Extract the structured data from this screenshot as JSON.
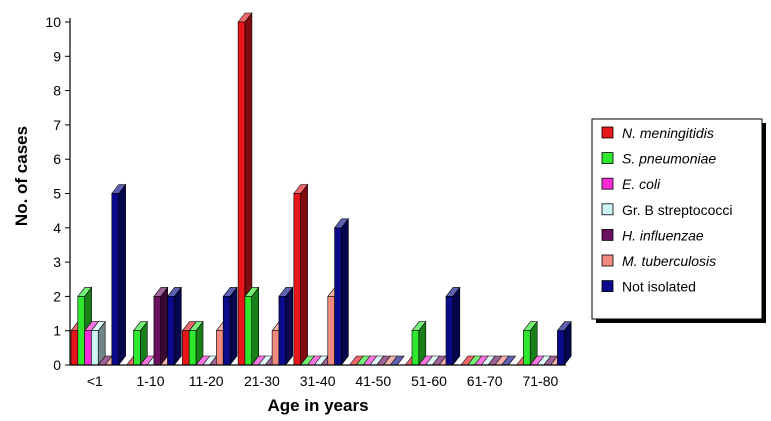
{
  "chart_data": {
    "type": "bar",
    "style": "3d-grouped",
    "title": "",
    "xlabel": "Age in years",
    "ylabel": "No. of cases",
    "ylim": [
      0,
      10
    ],
    "yticks": [
      "0",
      "1",
      "2",
      "3",
      "4",
      "5",
      "6",
      "7",
      "8",
      "9",
      "10"
    ],
    "categories": [
      "<1",
      "1-10",
      "11-20",
      "21-30",
      "31-40",
      "41-50",
      "51-60",
      "61-70",
      "71-80"
    ],
    "grid": false,
    "legend_position": "right",
    "series": [
      {
        "name": "N. meningitidis",
        "italic": true,
        "color": "#e8161b",
        "values": [
          1,
          0,
          1,
          10,
          5,
          0,
          0,
          0,
          0
        ]
      },
      {
        "name": "S. pneumoniae",
        "italic": true,
        "color": "#2ee82e",
        "values": [
          2,
          1,
          1,
          2,
          0,
          0,
          1,
          0,
          1
        ]
      },
      {
        "name": "E. coli",
        "italic": true,
        "color": "#ff2bd6",
        "values": [
          1,
          0,
          0,
          0,
          0,
          0,
          0,
          0,
          0
        ]
      },
      {
        "name": "Gr. B streptococci",
        "italic": false,
        "color": "#cdf4f4",
        "values": [
          1,
          0,
          0,
          0,
          0,
          0,
          0,
          0,
          0
        ]
      },
      {
        "name": "H. influenzae",
        "italic": true,
        "color": "#6b0f5f",
        "values": [
          0,
          2,
          0,
          0,
          0,
          0,
          0,
          0,
          0
        ]
      },
      {
        "name": "M. tuberculosis",
        "italic": true,
        "color": "#f08a80",
        "values": [
          0,
          0,
          1,
          1,
          2,
          0,
          0,
          0,
          0
        ]
      },
      {
        "name": "Not isolated",
        "italic": false,
        "color": "#0a0a8a",
        "values": [
          5,
          2,
          2,
          2,
          4,
          0,
          2,
          0,
          1
        ]
      }
    ]
  }
}
